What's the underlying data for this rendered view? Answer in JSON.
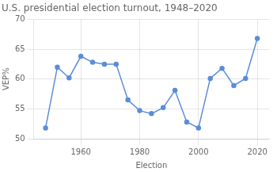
{
  "chart_data": {
    "type": "line",
    "title": "U.S. presidential election turnout, 1948–2020",
    "xlabel": "Election",
    "ylabel": "VEP%",
    "x": [
      1948,
      1952,
      1956,
      1960,
      1964,
      1968,
      1972,
      1976,
      1980,
      1984,
      1988,
      1992,
      1996,
      2000,
      2004,
      2008,
      2012,
      2016,
      2020
    ],
    "values": [
      51.8,
      62.0,
      60.2,
      63.8,
      62.8,
      62.5,
      62.5,
      56.5,
      54.7,
      54.2,
      55.2,
      58.1,
      52.8,
      51.8,
      60.1,
      61.8,
      58.9,
      60.1,
      66.8
    ],
    "color": "#5b8dd9",
    "marker": "circle",
    "xlim": [
      1944,
      2024
    ],
    "xticks": [
      1960,
      1980,
      2000,
      2020
    ],
    "ylim": [
      50,
      70
    ],
    "yticks": [
      50,
      55,
      60,
      65,
      70
    ],
    "grid": true
  }
}
